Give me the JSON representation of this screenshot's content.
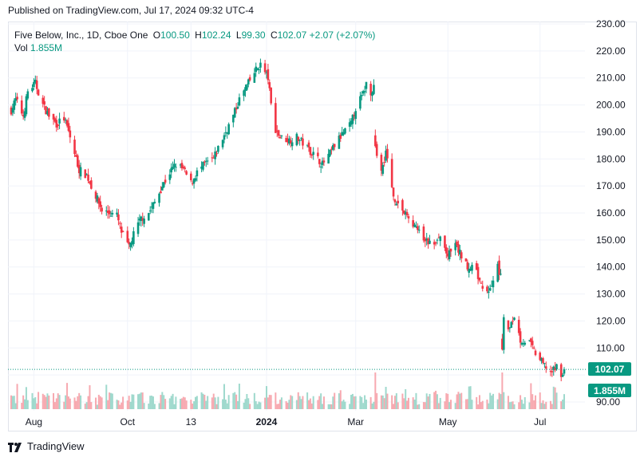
{
  "published": "Published on TradingView.com, Jul 17, 2024 09:32 UTC-4",
  "legend": {
    "symbol": "Five Below, Inc., 1D, Cboe One",
    "open_label": "O",
    "open": "100.50",
    "high_label": "H",
    "high": "102.24",
    "low_label": "L",
    "low": "99.30",
    "close_label": "C",
    "close": "102.07",
    "change": "+2.07 (+2.07%)",
    "volume_label": "Vol",
    "volume": "1.855M"
  },
  "branding": "TradingView",
  "colors": {
    "up": "#089981",
    "down": "#f23645",
    "grid": "#f0f3fa",
    "axis_text": "#131722",
    "badge_price": "#089981",
    "badge_volume": "#089981"
  },
  "chart_data": {
    "type": "candlestick",
    "ylim": [
      90,
      230
    ],
    "y_ticks": [
      90,
      100,
      110,
      120,
      130,
      140,
      150,
      160,
      170,
      180,
      190,
      200,
      210,
      220,
      230
    ],
    "y_tick_labels": [
      "90.00",
      "",
      "110.00",
      "120.00",
      "130.00",
      "140.00",
      "150.00",
      "160.00",
      "170.00",
      "180.00",
      "190.00",
      "200.00",
      "210.00",
      "220.00",
      "230.00"
    ],
    "x_tick_labels": [
      {
        "date": "2023-08-01",
        "label": "Aug",
        "bold": false
      },
      {
        "date": "2023-10-02",
        "label": "Oct",
        "bold": false
      },
      {
        "date": "2023-11-13",
        "label": "13",
        "bold": false
      },
      {
        "date": "2024-01-02",
        "label": "2024",
        "bold": true
      },
      {
        "date": "2024-03-01",
        "label": "Mar",
        "bold": false
      },
      {
        "date": "2024-05-01",
        "label": "May",
        "bold": false
      },
      {
        "date": "2024-07-01",
        "label": "Jul",
        "bold": false
      }
    ],
    "last_price": 102.07,
    "last_price_label": "102.07",
    "last_volume_label": "1.855M",
    "gap_dates": [
      "2024-03-14",
      "2024-06-06"
    ],
    "close_path": [
      [
        "2023-07-17",
        198
      ],
      [
        "2023-07-20",
        202
      ],
      [
        "2023-07-25",
        196
      ],
      [
        "2023-07-28",
        205
      ],
      [
        "2023-08-02",
        208
      ],
      [
        "2023-08-07",
        200
      ],
      [
        "2023-08-11",
        196
      ],
      [
        "2023-08-16",
        193
      ],
      [
        "2023-08-21",
        195
      ],
      [
        "2023-08-24",
        190
      ],
      [
        "2023-08-28",
        182
      ],
      [
        "2023-08-31",
        176
      ],
      [
        "2023-09-05",
        174
      ],
      [
        "2023-09-08",
        170
      ],
      [
        "2023-09-12",
        165
      ],
      [
        "2023-09-15",
        161
      ],
      [
        "2023-09-20",
        160
      ],
      [
        "2023-09-25",
        159
      ],
      [
        "2023-09-28",
        153
      ],
      [
        "2023-10-03",
        147
      ],
      [
        "2023-10-06",
        152
      ],
      [
        "2023-10-11",
        158
      ],
      [
        "2023-10-16",
        160
      ],
      [
        "2023-10-20",
        164
      ],
      [
        "2023-10-25",
        170
      ],
      [
        "2023-10-30",
        175
      ],
      [
        "2023-11-03",
        178
      ],
      [
        "2023-11-08",
        176
      ],
      [
        "2023-11-13",
        171
      ],
      [
        "2023-11-17",
        175
      ],
      [
        "2023-11-22",
        178
      ],
      [
        "2023-11-28",
        180
      ],
      [
        "2023-12-01",
        184
      ],
      [
        "2023-12-06",
        190
      ],
      [
        "2023-12-11",
        196
      ],
      [
        "2023-12-15",
        202
      ],
      [
        "2023-12-20",
        207
      ],
      [
        "2023-12-26",
        213
      ],
      [
        "2023-12-29",
        215
      ],
      [
        "2024-01-03",
        210
      ],
      [
        "2024-01-05",
        200
      ],
      [
        "2024-01-08",
        191
      ],
      [
        "2024-01-11",
        188
      ],
      [
        "2024-01-17",
        187
      ],
      [
        "2024-01-22",
        188
      ],
      [
        "2024-01-26",
        186
      ],
      [
        "2024-01-31",
        183
      ],
      [
        "2024-02-05",
        180
      ],
      [
        "2024-02-08",
        178
      ],
      [
        "2024-02-13",
        182
      ],
      [
        "2024-02-16",
        185
      ],
      [
        "2024-02-21",
        189
      ],
      [
        "2024-02-27",
        193
      ],
      [
        "2024-03-01",
        199
      ],
      [
        "2024-03-06",
        204
      ],
      [
        "2024-03-08",
        208
      ],
      [
        "2024-03-11",
        205
      ],
      [
        "2024-03-13",
        207
      ],
      [
        "2024-03-14",
        185
      ],
      [
        "2024-03-18",
        175
      ],
      [
        "2024-03-21",
        183
      ],
      [
        "2024-03-26",
        166
      ],
      [
        "2024-04-02",
        160
      ],
      [
        "2024-04-08",
        156
      ],
      [
        "2024-04-15",
        150
      ],
      [
        "2024-04-22",
        148
      ],
      [
        "2024-04-26",
        151
      ],
      [
        "2024-05-01",
        144
      ],
      [
        "2024-05-06",
        148
      ],
      [
        "2024-05-13",
        141
      ],
      [
        "2024-05-20",
        138
      ],
      [
        "2024-05-24",
        131
      ],
      [
        "2024-05-29",
        132
      ],
      [
        "2024-06-03",
        140
      ],
      [
        "2024-06-05",
        137
      ],
      [
        "2024-06-06",
        108
      ],
      [
        "2024-06-07",
        120
      ],
      [
        "2024-06-11",
        117
      ],
      [
        "2024-06-14",
        122
      ],
      [
        "2024-06-18",
        113
      ],
      [
        "2024-06-24",
        112
      ],
      [
        "2024-06-28",
        108
      ],
      [
        "2024-07-03",
        104
      ],
      [
        "2024-07-09",
        101
      ],
      [
        "2024-07-12",
        103
      ],
      [
        "2024-07-16",
        100
      ],
      [
        "2024-07-17",
        102.07
      ]
    ]
  }
}
